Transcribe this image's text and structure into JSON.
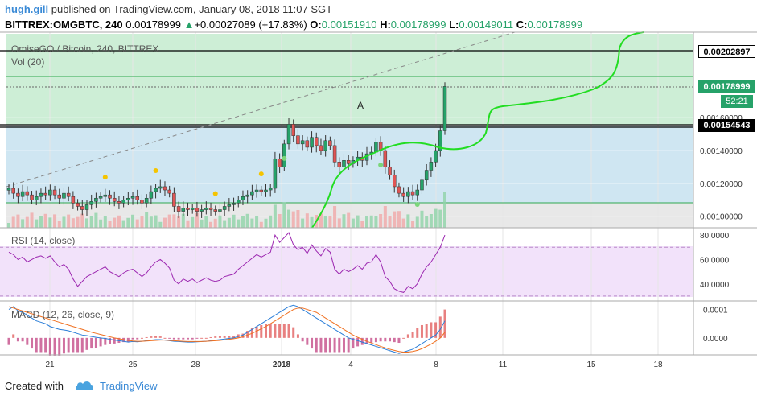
{
  "header": {
    "user": "hugh.gill",
    "published": "published on TradingView.com, January 08, 2018 11:07 SGT",
    "symbol": "BITTREX:OMGBTC, 240",
    "last": "0.00178999",
    "change": "+0.00027089 (+17.83%)",
    "o_label": "O:",
    "o_value": "0.00151910",
    "h_label": "H:",
    "h_value": "0.00178999",
    "l_label": "L:",
    "l_value": "0.00149011",
    "c_label": "C:",
    "c_value": "0.00178999"
  },
  "overlay": {
    "chart_title": "OmiseGO / Bitcoin, 240, BITTREX",
    "vol_label": "Vol (20)",
    "annotation": "A",
    "rsi_label": "RSI (14, close)",
    "macd_label": "MACD (12, 26, close, 9)"
  },
  "price_boxes": {
    "level_top": "0.00202897",
    "current": "0.00178999",
    "countdown": "52:21",
    "level_mid": "0.00154543"
  },
  "footer": {
    "created_with": "Created with",
    "brand": "TradingView"
  },
  "colors": {
    "up": "#26a269",
    "down": "#e05555",
    "curve": "#22dd22",
    "zone_green": "#cdeed6",
    "zone_blue": "#cfe6f2",
    "rsi_band": "#f2e2fa",
    "rsi_line": "#9c27b0",
    "macd_line": "#2b7ed8",
    "signal_line": "#f07020"
  },
  "chart_data": [
    {
      "type": "candlestick",
      "title": "OmiseGO / Bitcoin, 240, BITTREX",
      "x_ticks": [
        "21",
        "25",
        "28",
        "2018",
        "4",
        "8",
        "11",
        "15",
        "18"
      ],
      "y_ticks": [
        "0.00160000",
        "0.00140000",
        "0.00120000",
        "0.00100000"
      ],
      "ylim": [
        0.00093,
        0.00212
      ],
      "horizontal_levels": [
        0.00202897,
        0.00178999,
        0.00154543
      ],
      "last_price": 0.00178999,
      "annotation": "A",
      "closes": [
        0.00117,
        0.00114,
        0.00112,
        0.00115,
        0.00113,
        0.0011,
        0.00112,
        0.00114,
        0.00113,
        0.00116,
        0.00113,
        0.00111,
        0.00114,
        0.00112,
        0.00108,
        0.00106,
        0.00104,
        0.00107,
        0.00109,
        0.00111,
        0.00112,
        0.00113,
        0.00111,
        0.00109,
        0.00108,
        0.0011,
        0.00111,
        0.00112,
        0.0011,
        0.00108,
        0.00111,
        0.00115,
        0.00117,
        0.00118,
        0.00116,
        0.00114,
        0.00106,
        0.00103,
        0.00105,
        0.00104,
        0.00105,
        0.00103,
        0.00104,
        0.00105,
        0.00104,
        0.00103,
        0.00104,
        0.00106,
        0.00107,
        0.00108,
        0.0011,
        0.00112,
        0.00113,
        0.00115,
        0.00116,
        0.00115,
        0.00116,
        0.00117,
        0.00135,
        0.0013,
        0.00144,
        0.00156,
        0.00149,
        0.00144,
        0.00146,
        0.00142,
        0.00148,
        0.00143,
        0.0014,
        0.00146,
        0.00143,
        0.00133,
        0.0013,
        0.00134,
        0.00132,
        0.00134,
        0.00136,
        0.00134,
        0.00138,
        0.00139,
        0.00145,
        0.0014,
        0.0013,
        0.00125,
        0.00118,
        0.00114,
        0.00112,
        0.00115,
        0.00113,
        0.00116,
        0.00122,
        0.00128,
        0.00133,
        0.0014,
        0.00152,
        0.00179
      ]
    },
    {
      "type": "line",
      "title": "RSI (14, close)",
      "y_ticks": [
        "80.0000",
        "60.0000",
        "40.0000"
      ],
      "ylim": [
        26,
        86
      ],
      "bands": [
        30,
        70
      ],
      "values": [
        66,
        64,
        60,
        62,
        58,
        60,
        62,
        63,
        61,
        63,
        58,
        54,
        56,
        52,
        44,
        38,
        42,
        46,
        48,
        50,
        52,
        54,
        50,
        48,
        46,
        49,
        51,
        52,
        49,
        46,
        49,
        54,
        58,
        60,
        57,
        53,
        43,
        40,
        44,
        42,
        44,
        41,
        43,
        45,
        43,
        42,
        43,
        46,
        47,
        48,
        52,
        55,
        58,
        61,
        64,
        62,
        64,
        66,
        80,
        74,
        78,
        82,
        72,
        68,
        70,
        65,
        72,
        67,
        63,
        69,
        66,
        52,
        48,
        52,
        50,
        52,
        55,
        52,
        57,
        58,
        64,
        58,
        46,
        42,
        36,
        34,
        33,
        38,
        36,
        40,
        48,
        54,
        58,
        64,
        70,
        80
      ]
    },
    {
      "type": "line",
      "title": "MACD (12, 26, close, 9)",
      "y_ticks": [
        "0.0001",
        "0.0000"
      ],
      "ylim": [
        -6e-05,
        0.00013
      ],
      "series": [
        {
          "name": "MACD",
          "values": [
            0.0001,
            0.00011,
            9.5e-05,
            9e-05,
            8e-05,
            7e-05,
            6e-05,
            5.5e-05,
            5e-05,
            4e-05,
            3.5e-05,
            3e-05,
            2.8e-05,
            2.5e-05,
            2e-05,
            1.5e-05,
            1e-05,
            8e-06,
            5e-06,
            2e-06,
            0,
            -2e-06,
            -5e-06,
            -8e-06,
            -1e-05,
            -1.2e-05,
            -1.5e-05,
            -1.3e-05,
            -1.4e-05,
            -1.2e-05,
            -1e-05,
            -8e-06,
            -6e-06,
            -6e-06,
            -8e-06,
            -1e-05,
            -1.2e-05,
            -1.3e-05,
            -1.4e-05,
            -1.5e-05,
            -1.5e-05,
            -1.4e-05,
            -1.3e-05,
            -1.2e-05,
            -1e-05,
            -8e-06,
            -6e-06,
            -4e-06,
            -2e-06,
            0,
            5e-06,
            1e-05,
            2e-05,
            3e-05,
            4e-05,
            5e-05,
            6e-05,
            7e-05,
            8e-05,
            9e-05,
            0.0001,
            0.00011,
            0.000115,
            0.00011,
            0.0001,
            9e-05,
            8e-05,
            7e-05,
            6e-05,
            5e-05,
            4e-05,
            3e-05,
            2e-05,
            1e-05,
            0,
            -5e-06,
            -1e-05,
            -1.5e-05,
            -2e-05,
            -2.5e-05,
            -3e-05,
            -3.5e-05,
            -4e-05,
            -4.5e-05,
            -5e-05,
            -5.5e-05,
            -5e-05,
            -4.5e-05,
            -4e-05,
            -3e-05,
            -2e-05,
            -1e-05,
            0,
            1e-05,
            3e-05,
            6e-05
          ]
        },
        {
          "name": "Signal",
          "values": [
            0.00011,
            0.000105,
            0.0001,
            9.5e-05,
            9e-05,
            8.5e-05,
            8e-05,
            7.5e-05,
            7e-05,
            6.5e-05,
            6e-05,
            5.5e-05,
            5e-05,
            4.5e-05,
            4e-05,
            3.5e-05,
            3e-05,
            2.5e-05,
            2e-05,
            1.6e-05,
            1.2e-05,
            8e-06,
            4e-06,
            0,
            -3e-06,
            -6e-06,
            -9e-06,
            -1.1e-05,
            -1.2e-05,
            -1.2e-05,
            -1.1e-05,
            -1e-05,
            -9e-06,
            -8e-06,
            -8e-06,
            -9e-06,
            -1e-05,
            -1.1e-05,
            -1.2e-05,
            -1.3e-05,
            -1.3e-05,
            -1.3e-05,
            -1.3e-05,
            -1.2e-05,
            -1.1e-05,
            -1e-05,
            -9e-06,
            -7e-06,
            -5e-06,
            -3e-06,
            0,
            4e-06,
            1e-05,
            1.6e-05,
            2.4e-05,
            3.2e-05,
            4e-05,
            5e-05,
            6e-05,
            7e-05,
            8e-05,
            9e-05,
            0.0001,
            0.000105,
            0.000105,
            0.0001,
            9.5e-05,
            9e-05,
            8e-05,
            7e-05,
            6e-05,
            5e-05,
            4e-05,
            3e-05,
            2e-05,
            1e-05,
            2e-06,
            -5e-06,
            -1.2e-05,
            -1.8e-05,
            -2.4e-05,
            -3e-05,
            -3.5e-05,
            -4e-05,
            -4.4e-05,
            -4.8e-05,
            -5e-05,
            -5e-05,
            -4.8e-05,
            -4.4e-05,
            -3.8e-05,
            -3e-05,
            -2.2e-05,
            -1.2e-05,
            0,
            2e-05
          ]
        }
      ]
    }
  ]
}
